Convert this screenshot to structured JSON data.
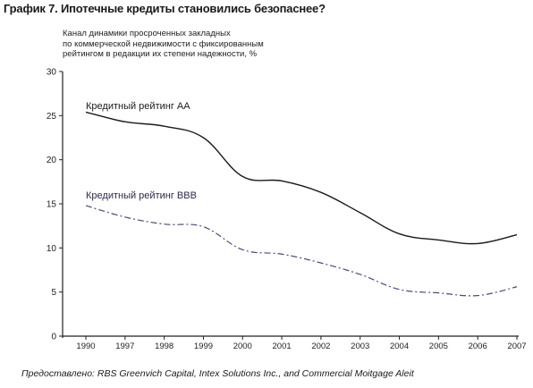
{
  "figure": {
    "title": "График 7. Ипотечные кредиты становились безопаснее?",
    "source": "Предоставлено: RBS Greenvich Capital, Intex Solutions Inc., and Commercial Moitgage Aleit"
  },
  "chart_data": {
    "type": "line",
    "title": "",
    "subtitle_lines": [
      "Канал динамики просроченных закладных",
      "по коммерческой недвижимости с фиксированным",
      "рейтингом в редакции их степени надежности, %"
    ],
    "xlabel": "",
    "ylabel": "",
    "categories": [
      "1990",
      "1997",
      "1998",
      "1999",
      "2000",
      "2001",
      "2002",
      "2003",
      "2004",
      "2005",
      "2006",
      "2007"
    ],
    "ylim": [
      0,
      30
    ],
    "yticks": [
      0,
      5,
      10,
      15,
      20,
      25,
      30
    ],
    "grid": false,
    "series": [
      {
        "name": "Кредитный рейтинг AA",
        "values": [
          25.4,
          24.3,
          23.8,
          22.5,
          18.1,
          17.6,
          16.3,
          14.0,
          11.6,
          10.9,
          10.5,
          11.5
        ],
        "color": "#1a1a1a",
        "style": "solid"
      },
      {
        "name": "Кредитный рейтинг BBB",
        "values": [
          14.8,
          13.5,
          12.7,
          12.4,
          9.8,
          9.3,
          8.3,
          7.0,
          5.3,
          4.9,
          4.6,
          5.6
        ],
        "color": "#4a4a7a",
        "style": "dashed"
      }
    ]
  }
}
